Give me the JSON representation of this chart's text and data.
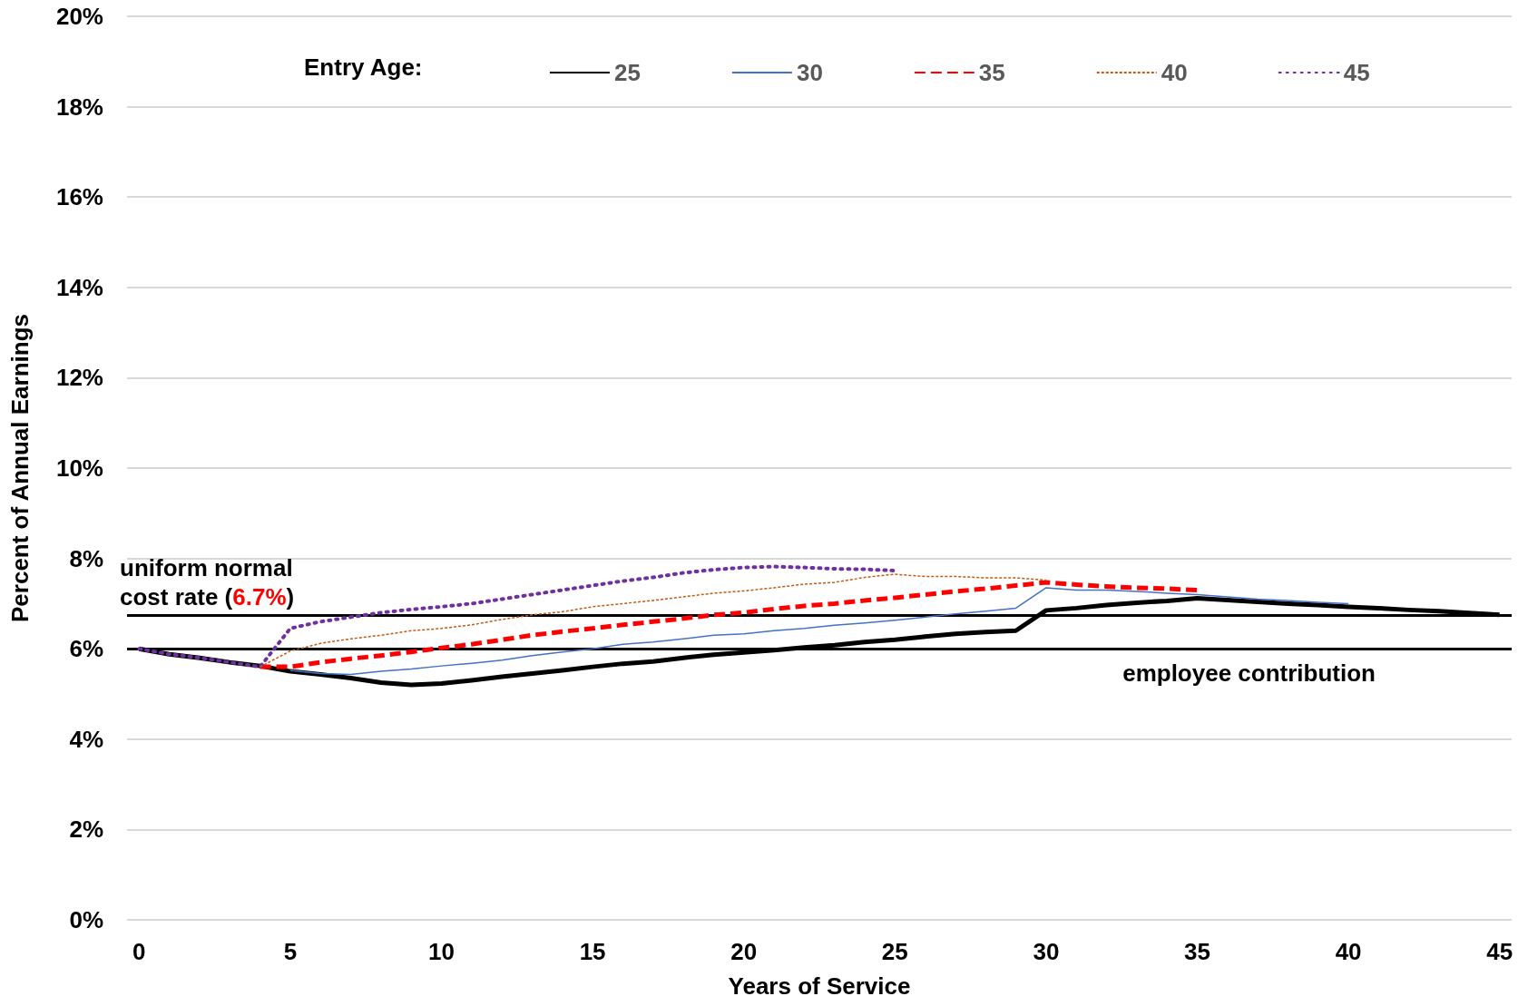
{
  "chart_data": {
    "type": "line",
    "xlabel": "Years of Service",
    "ylabel": "Percent of Annual Earnings",
    "legend_title": "Entry Age:",
    "legend": "top",
    "grid": "y",
    "marker": "none",
    "xlim": [
      -0.4,
      45.4
    ],
    "xticks": [
      0,
      5,
      10,
      15,
      20,
      25,
      30,
      35,
      40,
      45
    ],
    "ylim": [
      0,
      20
    ],
    "yticks": [
      {
        "value": 0,
        "label": "0%"
      },
      {
        "value": 2,
        "label": "2%"
      },
      {
        "value": 4,
        "label": "4%"
      },
      {
        "value": 6,
        "label": "6%"
      },
      {
        "value": 8,
        "label": "8%"
      },
      {
        "value": 10,
        "label": "10%"
      },
      {
        "value": 12,
        "label": "12%"
      },
      {
        "value": 14,
        "label": "14%"
      },
      {
        "value": 16,
        "label": "16%"
      },
      {
        "value": 18,
        "label": "18%"
      },
      {
        "value": 20,
        "label": "20%"
      }
    ],
    "x": [
      0,
      1,
      2,
      3,
      4,
      5,
      6,
      7,
      8,
      9,
      10,
      11,
      12,
      13,
      14,
      15,
      16,
      17,
      18,
      19,
      20,
      21,
      22,
      23,
      24,
      25,
      26,
      27,
      28,
      29,
      30,
      31,
      32,
      33,
      34,
      35,
      36,
      37,
      38,
      39,
      40,
      41,
      42,
      43,
      44,
      45
    ],
    "series": [
      {
        "name": "25",
        "color": "#000000",
        "line_style": "solid",
        "values": [
          6.0,
          5.88,
          5.8,
          5.7,
          5.62,
          5.5,
          5.43,
          5.35,
          5.25,
          5.2,
          5.23,
          5.3,
          5.38,
          5.45,
          5.52,
          5.6,
          5.67,
          5.72,
          5.8,
          5.87,
          5.92,
          5.97,
          6.03,
          6.08,
          6.15,
          6.2,
          6.27,
          6.33,
          6.37,
          6.4,
          6.85,
          6.9,
          6.97,
          7.02,
          7.06,
          7.12,
          7.08,
          7.04,
          7.0,
          6.97,
          6.93,
          6.9,
          6.86,
          6.83,
          6.79,
          6.75
        ]
      },
      {
        "name": "30",
        "color": "#4472c4",
        "line_style": "solid",
        "values": [
          null,
          null,
          null,
          null,
          null,
          5.52,
          5.45,
          5.43,
          5.5,
          5.55,
          5.62,
          5.68,
          5.75,
          5.85,
          5.93,
          6.0,
          6.1,
          6.15,
          6.22,
          6.3,
          6.33,
          6.4,
          6.45,
          6.52,
          6.57,
          6.63,
          6.7,
          6.77,
          6.83,
          6.9,
          7.35,
          7.3,
          7.3,
          7.27,
          7.23,
          7.2,
          7.15,
          7.1,
          7.07,
          7.03,
          7.0,
          null,
          null,
          null,
          null,
          null
        ]
      },
      {
        "name": "35",
        "color": "#ff0000",
        "line_style": "dashed",
        "values": [
          null,
          null,
          null,
          null,
          5.6,
          5.6,
          5.7,
          5.78,
          5.85,
          5.93,
          6.02,
          6.1,
          6.2,
          6.3,
          6.38,
          6.45,
          6.53,
          6.6,
          6.67,
          6.75,
          6.8,
          6.88,
          6.95,
          7.0,
          7.07,
          7.13,
          7.2,
          7.27,
          7.33,
          7.4,
          7.47,
          7.42,
          7.38,
          7.35,
          7.33,
          7.3,
          null,
          null,
          null,
          null,
          null,
          null,
          null,
          null,
          null,
          null
        ]
      },
      {
        "name": "40",
        "color": "#c55a11",
        "line_style": "dashed",
        "values": [
          null,
          null,
          null,
          null,
          5.6,
          5.95,
          6.12,
          6.22,
          6.3,
          6.4,
          6.45,
          6.53,
          6.65,
          6.75,
          6.82,
          6.93,
          7.0,
          7.07,
          7.15,
          7.23,
          7.28,
          7.35,
          7.43,
          7.47,
          7.58,
          7.65,
          7.6,
          7.6,
          7.57,
          7.57,
          7.52,
          null,
          null,
          null,
          null,
          null,
          null,
          null,
          null,
          null,
          null,
          null,
          null,
          null,
          null,
          null
        ]
      },
      {
        "name": "45",
        "color": "#7030a0",
        "line_style": "dotted",
        "values": [
          6.0,
          5.88,
          5.8,
          5.7,
          5.6,
          6.45,
          6.6,
          6.7,
          6.8,
          6.87,
          6.93,
          7.0,
          7.1,
          7.2,
          7.3,
          7.4,
          7.5,
          7.58,
          7.68,
          7.75,
          7.8,
          7.82,
          7.8,
          7.77,
          7.76,
          7.73,
          null,
          null,
          null,
          null,
          null,
          null,
          null,
          null,
          null,
          null,
          null,
          null,
          null,
          null,
          null,
          null,
          null,
          null,
          null,
          null
        ]
      }
    ],
    "ref_lines": [
      {
        "axis": "y",
        "value": 6.75,
        "label": "uniform normal cost rate (6.7%)",
        "color": "#000000"
      },
      {
        "axis": "y",
        "value": 6,
        "label": "employee contribution",
        "color": "#000000"
      }
    ]
  }
}
